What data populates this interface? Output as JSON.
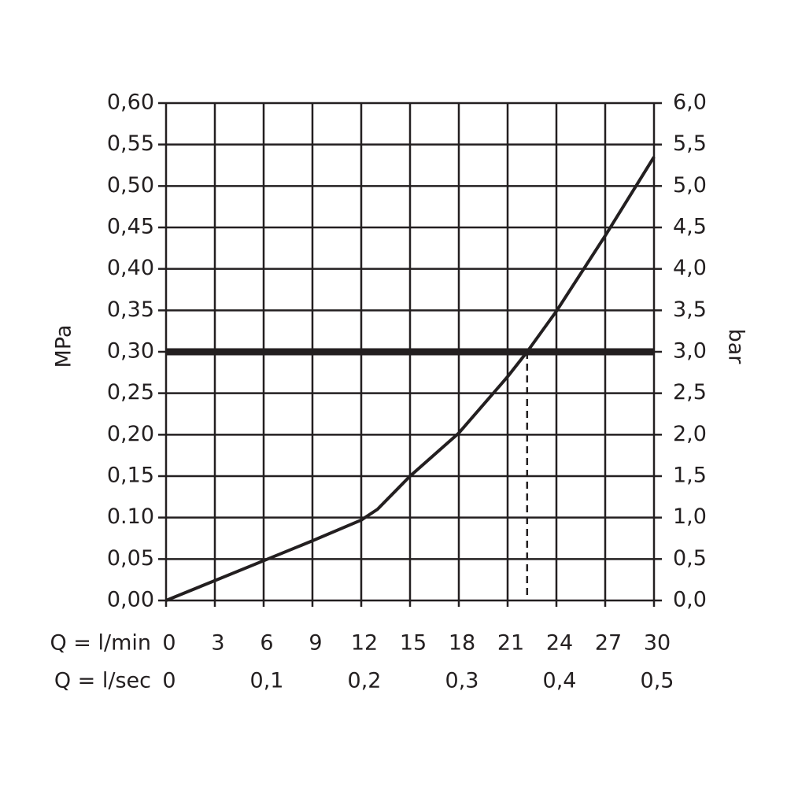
{
  "chart_data": {
    "type": "line",
    "y_label": "MPa",
    "y2_label": "bar",
    "x_label": "Q = l/min",
    "x2_label": "Q = l/sec",
    "x": [
      0,
      3,
      6,
      9,
      12,
      13,
      15,
      18,
      21,
      22.2,
      24,
      27,
      30
    ],
    "series": [
      {
        "color": "#231f20",
        "values": [
          0,
          0.024,
          0.048,
          0.072,
          0.097,
          0.11,
          0.15,
          0.202,
          0.27,
          0.3,
          0.349,
          0.44,
          0.535
        ]
      }
    ],
    "xlim": [
      0,
      30
    ],
    "xticks": [
      0,
      3,
      6,
      9,
      12,
      15,
      18,
      21,
      24,
      27,
      30
    ],
    "x2lim": [
      0,
      0.5
    ],
    "x2ticks": [
      0,
      {
        "value": 0.1,
        "label": "0,1"
      },
      {
        "value": 0.2,
        "label": "0,2"
      },
      {
        "value": 0.3,
        "label": "0,3"
      },
      {
        "value": 0.4,
        "label": "0,4"
      },
      {
        "value": 0.5,
        "label": "0,5"
      }
    ],
    "ylim": [
      0,
      0.6
    ],
    "yticks": [
      {
        "value": 0,
        "label": "0,00"
      },
      {
        "value": 0.05,
        "label": "0,05"
      },
      {
        "value": 0.1,
        "label": "0.10"
      },
      {
        "value": 0.15,
        "label": "0,15"
      },
      {
        "value": 0.2,
        "label": "0,20"
      },
      {
        "value": 0.25,
        "label": "0,25"
      },
      {
        "value": 0.3,
        "label": "0,30"
      },
      {
        "value": 0.35,
        "label": "0,35"
      },
      {
        "value": 0.4,
        "label": "0,40"
      },
      {
        "value": 0.45,
        "label": "0,45"
      },
      {
        "value": 0.5,
        "label": "0,50"
      },
      {
        "value": 0.55,
        "label": "0,55"
      },
      {
        "value": 0.6,
        "label": "0,60"
      }
    ],
    "y2lim": [
      0,
      6
    ],
    "y2ticks": [
      {
        "value": 0,
        "label": "0,0"
      },
      {
        "value": 0.5,
        "label": "0,5"
      },
      {
        "value": 1,
        "label": "1,0"
      },
      {
        "value": 1.5,
        "label": "1,5"
      },
      {
        "value": 2,
        "label": "2,0"
      },
      {
        "value": 2.5,
        "label": "2,5"
      },
      {
        "value": 3,
        "label": "3,0"
      },
      {
        "value": 3.5,
        "label": "3,5"
      },
      {
        "value": 4,
        "label": "4,0"
      },
      {
        "value": 4.5,
        "label": "4,5"
      },
      {
        "value": 5,
        "label": "5,0"
      },
      {
        "value": 5.5,
        "label": "5,5"
      },
      {
        "value": 6,
        "label": "6,0"
      }
    ],
    "grid": true,
    "reference_y": 0.3,
    "operating_point": {
      "x": 22.2,
      "y": 0.3
    }
  }
}
